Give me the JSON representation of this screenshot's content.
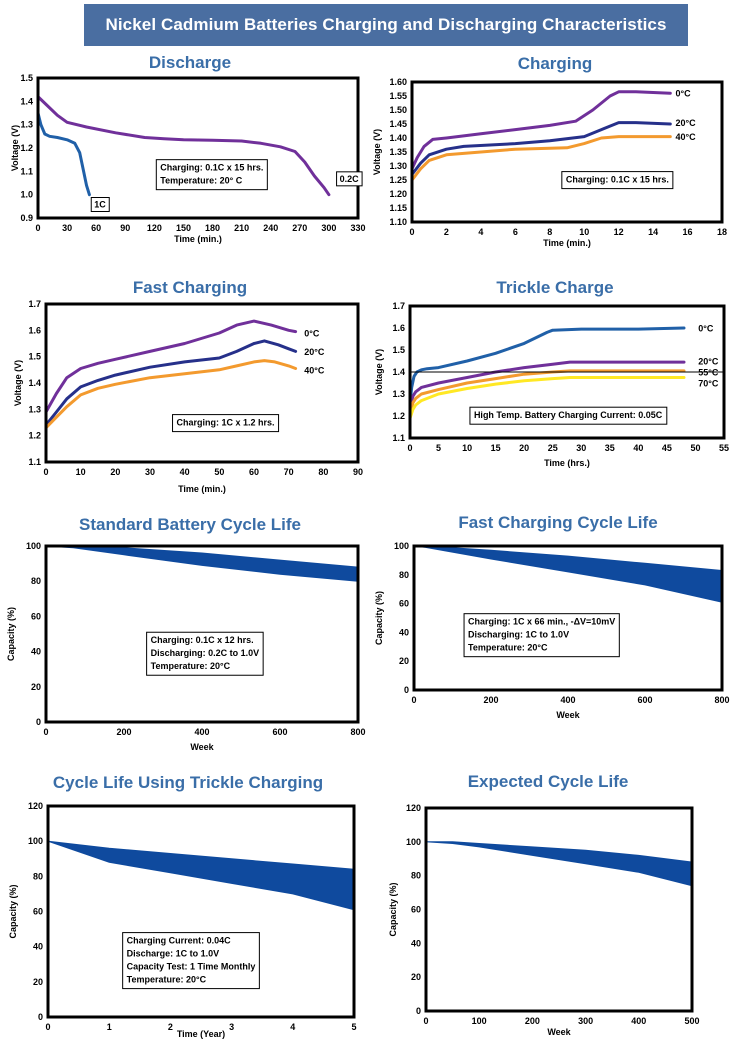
{
  "page_title": "Nickel Cadmium Batteries Charging and Discharging Characteristics",
  "colors": {
    "banner": "#4a6ea1",
    "title_text": "#3a6ea8",
    "purple": "#70309a",
    "blue": "#2060a8",
    "navy": "#26308a",
    "orange": "#f39a2e",
    "yellow": "#ffe824",
    "band_fill": "#0f4a9e"
  },
  "chart_data": [
    {
      "id": "discharge",
      "type": "line",
      "title": "Discharge",
      "xlabel": "Time (min.)",
      "ylabel": "Voltage (V)",
      "xlim": [
        0,
        330
      ],
      "ylim": [
        0.9,
        1.5
      ],
      "xticks": [
        0,
        30,
        60,
        90,
        120,
        150,
        180,
        210,
        240,
        270,
        300,
        330
      ],
      "yticks": [
        0.9,
        1.0,
        1.1,
        1.2,
        1.3,
        1.4,
        1.5
      ],
      "ytick_labels": [
        "0.9",
        "1.0",
        "1.1",
        "1.2",
        "1.3",
        "1.4",
        "1.5"
      ],
      "series": [
        {
          "name": "1C",
          "color": "blue",
          "x": [
            0,
            3,
            7,
            12,
            20,
            30,
            38,
            43,
            47,
            50,
            53
          ],
          "y": [
            1.35,
            1.3,
            1.26,
            1.25,
            1.245,
            1.235,
            1.22,
            1.18,
            1.1,
            1.04,
            1.0
          ]
        },
        {
          "name": "0.2C",
          "color": "purple",
          "x": [
            0,
            10,
            20,
            30,
            50,
            80,
            110,
            130,
            150,
            180,
            210,
            230,
            250,
            265,
            275,
            285,
            295,
            300
          ],
          "y": [
            1.42,
            1.38,
            1.34,
            1.31,
            1.29,
            1.265,
            1.245,
            1.24,
            1.235,
            1.233,
            1.23,
            1.22,
            1.205,
            1.185,
            1.14,
            1.08,
            1.03,
            1.0
          ]
        }
      ],
      "labels": [
        {
          "text": "1C",
          "x": 58,
          "y": 0.96
        },
        {
          "text": "0.2C",
          "x": 311,
          "y": 1.07
        }
      ],
      "notes": [
        "Charging: 0.1C x 15 hrs.",
        "Temperature: 20° C"
      ],
      "notes_at": {
        "x": 122,
        "y": 1.15
      }
    },
    {
      "id": "charging",
      "type": "line",
      "title": "Charging",
      "xlabel": "Time (min.)",
      "ylabel": "Voltage (V)",
      "xlim": [
        0,
        18
      ],
      "ylim": [
        1.1,
        1.6
      ],
      "xticks": [
        0,
        2,
        4,
        6,
        8,
        10,
        12,
        14,
        16,
        18
      ],
      "yticks": [
        1.1,
        1.15,
        1.2,
        1.25,
        1.3,
        1.35,
        1.4,
        1.45,
        1.5,
        1.55,
        1.6
      ],
      "ytick_labels": [
        "1.10",
        "1.15",
        "1.20",
        "1.25",
        "1.30",
        "1.35",
        "1.40",
        "1.45",
        "1.50",
        "1.55",
        "1.60"
      ],
      "series": [
        {
          "name": "0°C",
          "color": "purple",
          "x": [
            0,
            0.3,
            0.7,
            1.2,
            2,
            4,
            6,
            8,
            9.5,
            10.5,
            11.5,
            12,
            13,
            15
          ],
          "y": [
            1.29,
            1.33,
            1.37,
            1.395,
            1.4,
            1.415,
            1.43,
            1.445,
            1.46,
            1.5,
            1.55,
            1.565,
            1.565,
            1.56
          ]
        },
        {
          "name": "20°C",
          "color": "navy",
          "x": [
            0,
            0.5,
            1,
            2,
            3,
            6,
            8,
            10,
            11,
            12,
            13,
            15
          ],
          "y": [
            1.27,
            1.31,
            1.34,
            1.36,
            1.37,
            1.38,
            1.39,
            1.405,
            1.43,
            1.455,
            1.455,
            1.45
          ]
        },
        {
          "name": "40°C",
          "color": "orange",
          "x": [
            0,
            0.5,
            1,
            2,
            3,
            6,
            9,
            10,
            11,
            12,
            13,
            15
          ],
          "y": [
            1.25,
            1.29,
            1.32,
            1.34,
            1.345,
            1.36,
            1.365,
            1.38,
            1.4,
            1.405,
            1.405,
            1.405
          ]
        }
      ],
      "labels": [
        {
          "text": "0°C",
          "x": 15.3,
          "y": 1.56
        },
        {
          "text": "20°C",
          "x": 15.3,
          "y": 1.455
        },
        {
          "text": "40°C",
          "x": 15.3,
          "y": 1.405
        }
      ],
      "notes": [
        "Charging: 0.1C x 15 hrs."
      ],
      "notes_at": {
        "x": 8.7,
        "y": 1.28
      }
    },
    {
      "id": "fast_charging",
      "type": "line",
      "title": "Fast Charging",
      "xlabel": "Time (min.)",
      "ylabel": "Voltage (V)",
      "xlim": [
        0,
        90
      ],
      "ylim": [
        1.1,
        1.7
      ],
      "xticks": [
        0,
        10,
        20,
        30,
        40,
        50,
        60,
        70,
        80,
        90
      ],
      "yticks": [
        1.1,
        1.2,
        1.3,
        1.4,
        1.5,
        1.6,
        1.7
      ],
      "ytick_labels": [
        "1.1",
        "1.2",
        "1.3",
        "1.4",
        "1.5",
        "1.6",
        "1.7"
      ],
      "series": [
        {
          "name": "0°C",
          "color": "purple",
          "x": [
            0,
            3,
            6,
            10,
            15,
            20,
            30,
            40,
            50,
            55,
            60,
            65,
            70,
            72
          ],
          "y": [
            1.29,
            1.36,
            1.42,
            1.455,
            1.475,
            1.49,
            1.52,
            1.55,
            1.59,
            1.62,
            1.635,
            1.62,
            1.6,
            1.595
          ]
        },
        {
          "name": "20°C",
          "color": "navy",
          "x": [
            0,
            3,
            6,
            10,
            15,
            20,
            30,
            40,
            50,
            55,
            60,
            63,
            67,
            70,
            72
          ],
          "y": [
            1.24,
            1.29,
            1.34,
            1.385,
            1.41,
            1.43,
            1.46,
            1.48,
            1.495,
            1.52,
            1.55,
            1.56,
            1.545,
            1.53,
            1.52
          ]
        },
        {
          "name": "40°C",
          "color": "orange",
          "x": [
            0,
            3,
            6,
            10,
            15,
            20,
            30,
            40,
            50,
            55,
            60,
            63,
            66,
            70,
            72
          ],
          "y": [
            1.23,
            1.27,
            1.31,
            1.355,
            1.38,
            1.395,
            1.42,
            1.435,
            1.45,
            1.465,
            1.48,
            1.485,
            1.48,
            1.465,
            1.455
          ]
        }
      ],
      "labels": [
        {
          "text": "0°C",
          "x": 74.5,
          "y": 1.59
        },
        {
          "text": "20°C",
          "x": 74.5,
          "y": 1.52
        },
        {
          "text": "40°C",
          "x": 74.5,
          "y": 1.45
        }
      ],
      "notes": [
        "Charging: 1C x 1.2 hrs."
      ],
      "notes_at": {
        "x": 36.5,
        "y": 1.28
      }
    },
    {
      "id": "trickle_charge",
      "type": "line",
      "title": "Trickle Charge",
      "xlabel": "Time (hrs.)",
      "ylabel": "Voltage (V)",
      "xlim": [
        0,
        55
      ],
      "ylim": [
        1.1,
        1.7
      ],
      "xticks": [
        0,
        5,
        10,
        15,
        20,
        25,
        30,
        35,
        40,
        45,
        50,
        55
      ],
      "yticks": [
        1.1,
        1.2,
        1.3,
        1.4,
        1.5,
        1.6,
        1.7
      ],
      "ytick_labels": [
        "1.1",
        "1.2",
        "1.3",
        "1.4",
        "1.5",
        "1.6",
        "1.7"
      ],
      "series": [
        {
          "name": "0°C",
          "color": "blue",
          "x": [
            0,
            0.3,
            0.7,
            1.2,
            2,
            3,
            5,
            10,
            15,
            20,
            24,
            25,
            30,
            40,
            48
          ],
          "y": [
            1.26,
            1.33,
            1.38,
            1.4,
            1.41,
            1.415,
            1.42,
            1.45,
            1.485,
            1.53,
            1.58,
            1.59,
            1.595,
            1.595,
            1.6
          ]
        },
        {
          "name": "20°C",
          "color": "purple",
          "x": [
            0,
            0.5,
            1,
            2,
            5,
            10,
            15,
            20,
            25,
            28,
            30,
            40,
            48
          ],
          "y": [
            1.24,
            1.29,
            1.31,
            1.33,
            1.35,
            1.375,
            1.4,
            1.42,
            1.435,
            1.445,
            1.445,
            1.445,
            1.445
          ]
        },
        {
          "name": "55°C",
          "color": "orange",
          "x": [
            0,
            0.5,
            1,
            2,
            5,
            10,
            15,
            20,
            25,
            28,
            30,
            40,
            48
          ],
          "y": [
            1.21,
            1.26,
            1.28,
            1.3,
            1.32,
            1.35,
            1.37,
            1.39,
            1.4,
            1.405,
            1.405,
            1.405,
            1.405
          ]
        },
        {
          "name": "70°C",
          "color": "yellow",
          "x": [
            0,
            0.5,
            1,
            2,
            5,
            10,
            15,
            20,
            25,
            28,
            30,
            40,
            48
          ],
          "y": [
            1.19,
            1.23,
            1.25,
            1.27,
            1.3,
            1.325,
            1.345,
            1.36,
            1.37,
            1.375,
            1.375,
            1.375,
            1.375
          ]
        }
      ],
      "labels": [
        {
          "text": "0°C",
          "x": 50.5,
          "y": 1.6
        },
        {
          "text": "20°C",
          "x": 50.5,
          "y": 1.45
        },
        {
          "text": "55°C",
          "x": 50.5,
          "y": 1.4
        },
        {
          "text": "70°C",
          "x": 50.5,
          "y": 1.35
        }
      ],
      "notes": [
        "High Temp. Battery Charging Current: 0.05C"
      ],
      "notes_at": {
        "x": 10.5,
        "y": 1.24
      }
    },
    {
      "id": "standard_cycle_life",
      "type": "area",
      "title": "Standard Battery Cycle Life",
      "xlabel": "Week",
      "ylabel": "Capacity (%)",
      "xlim": [
        0,
        800
      ],
      "ylim": [
        0,
        100
      ],
      "xticks": [
        0,
        200,
        400,
        600,
        800
      ],
      "yticks": [
        0,
        20,
        40,
        60,
        80,
        100
      ],
      "ytick_labels": [
        "0",
        "20",
        "40",
        "60",
        "80",
        "100"
      ],
      "band": {
        "x": [
          0,
          70,
          200,
          400,
          600,
          800
        ],
        "upper": [
          100,
          100,
          99,
          96,
          92,
          88
        ],
        "lower": [
          100,
          99,
          95,
          89,
          84,
          80
        ]
      },
      "notes": [
        "Charging: 0.1C x 12 hrs.",
        "Discharging: 0.2C to 1.0V",
        "Temperature: 20°C"
      ],
      "notes_at": {
        "x": 258,
        "y": 51
      }
    },
    {
      "id": "fast_charging_cycle_life",
      "type": "area",
      "title": "Fast Charging Cycle Life",
      "xlabel": "Week",
      "ylabel": "Capacity (%)",
      "xlim": [
        0,
        800
      ],
      "ylim": [
        0,
        100
      ],
      "xticks": [
        0,
        200,
        400,
        600,
        800
      ],
      "yticks": [
        0,
        20,
        40,
        60,
        80,
        100
      ],
      "ytick_labels": [
        "0",
        "20",
        "40",
        "60",
        "80",
        "100"
      ],
      "band": {
        "x": [
          0,
          30,
          200,
          400,
          600,
          800
        ],
        "upper": [
          100,
          100,
          97,
          93,
          88,
          83
        ],
        "lower": [
          100,
          99,
          91,
          82,
          73,
          61
        ]
      },
      "notes": [
        "Charging: 1C x 66 min., -ΔV=10mV",
        "Discharging: 1C to 1.0V",
        "Temperature: 20°C"
      ],
      "notes_at": {
        "x": 130,
        "y": 53
      }
    },
    {
      "id": "cycle_life_trickle",
      "type": "area",
      "title": "Cycle Life Using Trickle Charging",
      "xlabel": "Time (Year)",
      "ylabel": "Capacity (%)",
      "xlim": [
        0,
        5
      ],
      "ylim": [
        0,
        120
      ],
      "xticks": [
        0,
        1,
        2,
        3,
        4,
        5
      ],
      "yticks": [
        0,
        20,
        40,
        60,
        80,
        100,
        120
      ],
      "ytick_labels": [
        "0",
        "20",
        "40",
        "60",
        "80",
        "100",
        "120"
      ],
      "band": {
        "x": [
          0,
          1,
          2,
          3,
          4,
          5
        ],
        "upper": [
          100,
          96,
          93,
          90,
          87,
          84
        ],
        "lower": [
          100,
          88,
          82,
          76,
          70,
          61
        ]
      },
      "notes": [
        "Charging Current: 0.04C",
        "Discharge: 1C to 1.0V",
        "Capacity Test: 1 Time Monthly",
        "Temperature: 20°C"
      ],
      "notes_at": {
        "x": 1.22,
        "y": 48
      }
    },
    {
      "id": "expected_cycle_life",
      "type": "area",
      "title": "Expected Cycle Life",
      "xlabel": "Week",
      "ylabel": "Capacity (%)",
      "xlim": [
        0,
        500
      ],
      "ylim": [
        0,
        120
      ],
      "xticks": [
        0,
        100,
        200,
        300,
        400,
        500
      ],
      "yticks": [
        0,
        20,
        40,
        60,
        80,
        100,
        120
      ],
      "ytick_labels": [
        "0",
        "20",
        "40",
        "60",
        "80",
        "100",
        "120"
      ],
      "band": {
        "x": [
          0,
          50,
          100,
          200,
          300,
          400,
          500
        ],
        "upper": [
          100,
          100,
          99,
          97,
          95,
          92,
          88
        ],
        "lower": [
          100,
          99,
          97,
          92,
          87,
          82,
          74
        ]
      },
      "notes": [],
      "notes_at": {
        "x": 0,
        "y": 0
      }
    }
  ]
}
